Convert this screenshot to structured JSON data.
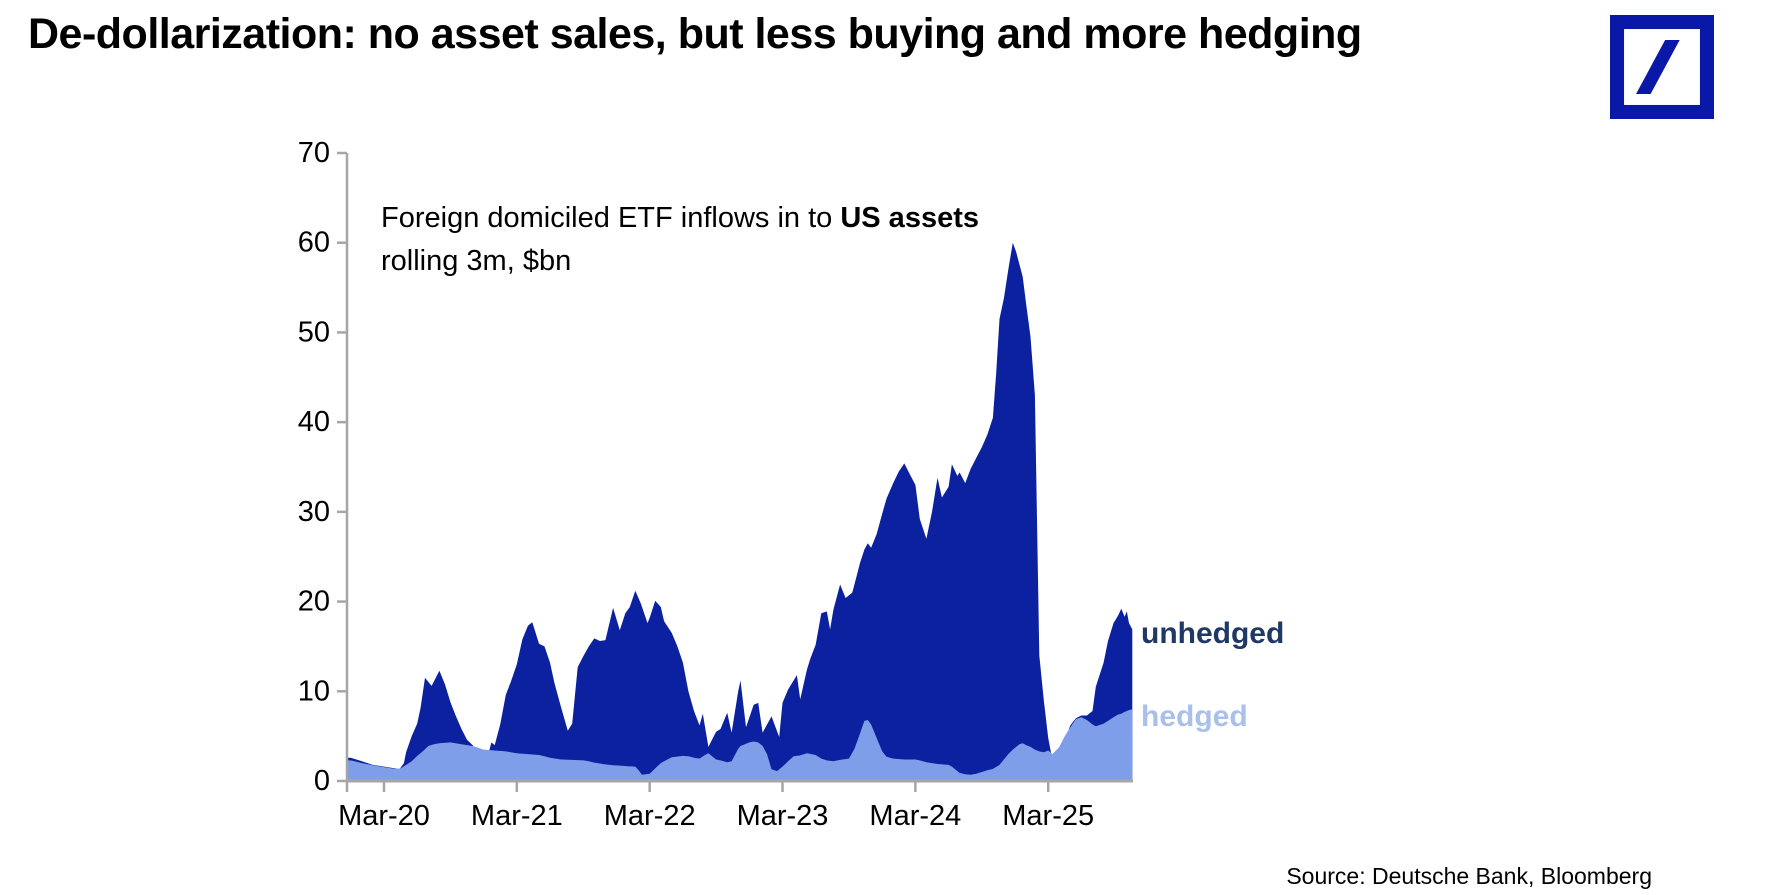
{
  "title": "De-dollarization: no asset sales, but less buying and more hedging",
  "logo": {
    "name": "deutsche-bank-logo",
    "color": "#0A18A8"
  },
  "annotation": {
    "line1_regular": "Foreign domiciled ETF inflows in to ",
    "line1_bold": "US assets",
    "line2": "rolling 3m, $bn"
  },
  "series_labels": {
    "unhedged": "unhedged",
    "hedged": "hedged"
  },
  "source": "Source: Deutsche Bank, Bloomberg",
  "colors": {
    "unhedged_fill": "#0c21a0",
    "hedged_fill": "#7e9ee9",
    "unhedged_label": "#1f3864",
    "hedged_label": "#a9c0ea",
    "axis": "#a6a6a6",
    "logo_blue": "#0A18A8"
  },
  "chart_data": {
    "type": "area",
    "title": "Foreign domiciled ETF inflows in to US assets, rolling 3m, $bn",
    "x_unit": "months since Dec-2019 (0 = Dec-2019)",
    "ylim": [
      0,
      70
    ],
    "y_ticks": [
      0,
      10,
      20,
      30,
      40,
      50,
      60,
      70
    ],
    "grid": false,
    "legend_position": "right-of-last-points",
    "x_ticks": [
      {
        "m": 3,
        "label": "Mar-20"
      },
      {
        "m": 15,
        "label": "Mar-21"
      },
      {
        "m": 27,
        "label": "Mar-22"
      },
      {
        "m": 39,
        "label": "Mar-23"
      },
      {
        "m": 51,
        "label": "Mar-24"
      },
      {
        "m": 63,
        "label": "Mar-25"
      }
    ],
    "series": [
      {
        "name": "unhedged",
        "color": "#0c21a0",
        "points": [
          [
            -0.3,
            2.6
          ],
          [
            0,
            2.6
          ],
          [
            1,
            2.2
          ],
          [
            2,
            1.8
          ],
          [
            3,
            1.6
          ],
          [
            4,
            1.4
          ],
          [
            4.4,
            1.3
          ],
          [
            4.8,
            2.0
          ],
          [
            5,
            3.2
          ],
          [
            5.5,
            5.0
          ],
          [
            6,
            6.4
          ],
          [
            6.3,
            8.1
          ],
          [
            6.7,
            11.5
          ],
          [
            7.3,
            10.6
          ],
          [
            8,
            12.3
          ],
          [
            8.5,
            10.8
          ],
          [
            9,
            8.8
          ],
          [
            9.5,
            7.2
          ],
          [
            10,
            5.8
          ],
          [
            10.5,
            4.6
          ],
          [
            11,
            4.0
          ],
          [
            11.5,
            3.2
          ],
          [
            12,
            3.4
          ],
          [
            12.4,
            2.9
          ],
          [
            12.7,
            4.3
          ],
          [
            13,
            4.0
          ],
          [
            13.5,
            6.3
          ],
          [
            14,
            9.6
          ],
          [
            14.5,
            11.2
          ],
          [
            15,
            13.0
          ],
          [
            15.5,
            15.8
          ],
          [
            16,
            17.3
          ],
          [
            16.4,
            17.7
          ],
          [
            17,
            15.3
          ],
          [
            17.5,
            15.0
          ],
          [
            18,
            13.2
          ],
          [
            18.4,
            10.9
          ],
          [
            19,
            8.2
          ],
          [
            19.6,
            5.6
          ],
          [
            20,
            6.4
          ],
          [
            20.5,
            12.7
          ],
          [
            21,
            13.9
          ],
          [
            21.5,
            15.0
          ],
          [
            22,
            15.9
          ],
          [
            22.5,
            15.6
          ],
          [
            23,
            15.7
          ],
          [
            23.7,
            19.3
          ],
          [
            24.3,
            16.8
          ],
          [
            24.8,
            18.7
          ],
          [
            25.2,
            19.4
          ],
          [
            25.7,
            21.2
          ],
          [
            26.2,
            19.8
          ],
          [
            26.8,
            17.6
          ],
          [
            27,
            18.2
          ],
          [
            27.5,
            20.1
          ],
          [
            28,
            19.4
          ],
          [
            28.3,
            17.8
          ],
          [
            29,
            16.5
          ],
          [
            29.5,
            15.0
          ],
          [
            30,
            13.2
          ],
          [
            30.5,
            10.0
          ],
          [
            31,
            7.8
          ],
          [
            31.5,
            6.2
          ],
          [
            31.8,
            7.5
          ],
          [
            32.3,
            3.8
          ],
          [
            33,
            5.5
          ],
          [
            33.4,
            5.8
          ],
          [
            34,
            7.6
          ],
          [
            34.4,
            5.4
          ],
          [
            35,
            10.0
          ],
          [
            35.2,
            11.2
          ],
          [
            35.7,
            6.0
          ],
          [
            36.4,
            8.5
          ],
          [
            36.8,
            8.7
          ],
          [
            37.2,
            5.4
          ],
          [
            38,
            7.2
          ],
          [
            38.7,
            4.9
          ],
          [
            39,
            8.7
          ],
          [
            39.5,
            10.2
          ],
          [
            40,
            11.2
          ],
          [
            40.3,
            11.8
          ],
          [
            40.6,
            9.1
          ],
          [
            41.2,
            12.4
          ],
          [
            41.5,
            13.6
          ],
          [
            42,
            15.2
          ],
          [
            42.5,
            18.7
          ],
          [
            43,
            18.9
          ],
          [
            43.3,
            16.9
          ],
          [
            43.6,
            19.1
          ],
          [
            44.2,
            21.9
          ],
          [
            44.7,
            20.4
          ],
          [
            45.3,
            21.0
          ],
          [
            45.6,
            22.4
          ],
          [
            46,
            24.3
          ],
          [
            46.4,
            25.8
          ],
          [
            46.7,
            26.5
          ],
          [
            47,
            26.0
          ],
          [
            47.5,
            27.5
          ],
          [
            48,
            29.8
          ],
          [
            48.4,
            31.5
          ],
          [
            49,
            33.2
          ],
          [
            49.5,
            34.5
          ],
          [
            50,
            35.4
          ],
          [
            50.5,
            34.2
          ],
          [
            51,
            33.0
          ],
          [
            51.4,
            29.2
          ],
          [
            52,
            27.0
          ],
          [
            52.5,
            30.0
          ],
          [
            53,
            33.8
          ],
          [
            53.4,
            31.6
          ],
          [
            54,
            32.8
          ],
          [
            54.3,
            35.3
          ],
          [
            54.8,
            34.0
          ],
          [
            55,
            34.4
          ],
          [
            55.5,
            33.2
          ],
          [
            56,
            34.8
          ],
          [
            56.5,
            36.0
          ],
          [
            57,
            37.2
          ],
          [
            57.5,
            38.6
          ],
          [
            58,
            40.5
          ],
          [
            58.3,
            45.5
          ],
          [
            58.6,
            51.5
          ],
          [
            59,
            53.8
          ],
          [
            59.4,
            57.0
          ],
          [
            59.8,
            60.0
          ],
          [
            60.1,
            59.0
          ],
          [
            60.4,
            57.6
          ],
          [
            60.7,
            56.2
          ],
          [
            61,
            53.2
          ],
          [
            61.4,
            49.5
          ],
          [
            61.8,
            43.0
          ],
          [
            62.2,
            14.0
          ],
          [
            62.6,
            9.0
          ],
          [
            63,
            4.8
          ],
          [
            63.4,
            2.2
          ],
          [
            64,
            2.8
          ],
          [
            64.5,
            4.5
          ],
          [
            65,
            6.2
          ],
          [
            65.5,
            7.0
          ],
          [
            66,
            7.3
          ],
          [
            66.5,
            7.3
          ],
          [
            67,
            7.8
          ],
          [
            67.3,
            10.5
          ],
          [
            68,
            13.2
          ],
          [
            68.4,
            15.6
          ],
          [
            68.9,
            17.6
          ],
          [
            69.3,
            18.4
          ],
          [
            69.6,
            19.2
          ],
          [
            69.9,
            18.3
          ],
          [
            70.1,
            18.9
          ],
          [
            70.3,
            17.6
          ],
          [
            70.6,
            16.9
          ]
        ]
      },
      {
        "name": "hedged",
        "color": "#7e9ee9",
        "points": [
          [
            -0.3,
            2.3
          ],
          [
            0,
            2.3
          ],
          [
            1,
            2.0
          ],
          [
            2,
            1.75
          ],
          [
            3,
            1.55
          ],
          [
            4,
            1.35
          ],
          [
            4.5,
            1.4
          ],
          [
            5,
            1.8
          ],
          [
            5.5,
            2.2
          ],
          [
            6,
            2.8
          ],
          [
            6.5,
            3.3
          ],
          [
            7,
            3.9
          ],
          [
            7.5,
            4.1
          ],
          [
            8,
            4.2
          ],
          [
            9,
            4.3
          ],
          [
            10,
            4.1
          ],
          [
            11,
            3.9
          ],
          [
            11.5,
            3.7
          ],
          [
            12,
            3.5
          ],
          [
            13,
            3.4
          ],
          [
            14,
            3.3
          ],
          [
            15,
            3.1
          ],
          [
            16,
            3.0
          ],
          [
            17,
            2.9
          ],
          [
            17.5,
            2.75
          ],
          [
            18,
            2.6
          ],
          [
            18.5,
            2.5
          ],
          [
            19,
            2.4
          ],
          [
            20,
            2.35
          ],
          [
            21,
            2.3
          ],
          [
            21.5,
            2.2
          ],
          [
            22,
            2.05
          ],
          [
            23,
            1.85
          ],
          [
            23.7,
            1.75
          ],
          [
            24.5,
            1.7
          ],
          [
            25,
            1.65
          ],
          [
            25.7,
            1.6
          ],
          [
            26,
            1.2
          ],
          [
            26.3,
            0.7
          ],
          [
            27,
            0.8
          ],
          [
            27.5,
            1.4
          ],
          [
            28,
            2.0
          ],
          [
            28.3,
            2.2
          ],
          [
            29,
            2.65
          ],
          [
            30,
            2.8
          ],
          [
            30.5,
            2.75
          ],
          [
            31,
            2.6
          ],
          [
            31.5,
            2.5
          ],
          [
            32,
            2.9
          ],
          [
            32.3,
            3.1
          ],
          [
            33,
            2.4
          ],
          [
            33.4,
            2.3
          ],
          [
            34,
            2.1
          ],
          [
            34.4,
            2.2
          ],
          [
            35,
            3.6
          ],
          [
            35.2,
            3.9
          ],
          [
            35.7,
            4.15
          ],
          [
            36,
            4.3
          ],
          [
            36.4,
            4.4
          ],
          [
            36.8,
            4.3
          ],
          [
            37.2,
            3.9
          ],
          [
            37.6,
            3.0
          ],
          [
            38,
            1.3
          ],
          [
            38.5,
            1.1
          ],
          [
            39,
            1.6
          ],
          [
            39.5,
            2.2
          ],
          [
            40,
            2.75
          ],
          [
            40.6,
            2.85
          ],
          [
            41.2,
            3.1
          ],
          [
            42,
            2.9
          ],
          [
            42.5,
            2.5
          ],
          [
            43,
            2.3
          ],
          [
            43.6,
            2.2
          ],
          [
            44.2,
            2.35
          ],
          [
            45,
            2.5
          ],
          [
            45.5,
            3.6
          ],
          [
            46,
            5.3
          ],
          [
            46.4,
            6.7
          ],
          [
            46.7,
            6.8
          ],
          [
            47,
            6.3
          ],
          [
            47.5,
            4.8
          ],
          [
            48,
            3.3
          ],
          [
            48.4,
            2.7
          ],
          [
            49,
            2.5
          ],
          [
            50,
            2.4
          ],
          [
            51,
            2.4
          ],
          [
            51.4,
            2.3
          ],
          [
            52,
            2.1
          ],
          [
            52.5,
            2.0
          ],
          [
            53,
            1.9
          ],
          [
            54,
            1.8
          ],
          [
            54.3,
            1.6
          ],
          [
            54.8,
            1.1
          ],
          [
            55,
            0.9
          ],
          [
            55.5,
            0.75
          ],
          [
            56,
            0.7
          ],
          [
            56.5,
            0.8
          ],
          [
            57,
            1.0
          ],
          [
            57.5,
            1.2
          ],
          [
            58,
            1.35
          ],
          [
            58.6,
            1.8
          ],
          [
            59,
            2.4
          ],
          [
            59.4,
            3.0
          ],
          [
            59.8,
            3.5
          ],
          [
            60.4,
            4.1
          ],
          [
            60.7,
            4.2
          ],
          [
            61,
            4.0
          ],
          [
            61.4,
            3.8
          ],
          [
            61.8,
            3.5
          ],
          [
            62.2,
            3.3
          ],
          [
            62.6,
            3.2
          ],
          [
            63,
            3.4
          ],
          [
            63.4,
            3.0
          ],
          [
            64,
            3.8
          ],
          [
            64.5,
            5.0
          ],
          [
            65,
            6.0
          ],
          [
            65.5,
            6.9
          ],
          [
            66,
            7.1
          ],
          [
            66.5,
            6.8
          ],
          [
            67,
            6.3
          ],
          [
            67.3,
            6.1
          ],
          [
            68,
            6.4
          ],
          [
            68.4,
            6.7
          ],
          [
            68.9,
            7.1
          ],
          [
            69.3,
            7.4
          ],
          [
            69.6,
            7.5
          ],
          [
            69.9,
            7.7
          ],
          [
            70.1,
            7.8
          ],
          [
            70.3,
            7.9
          ],
          [
            70.6,
            8.0
          ]
        ]
      }
    ]
  }
}
